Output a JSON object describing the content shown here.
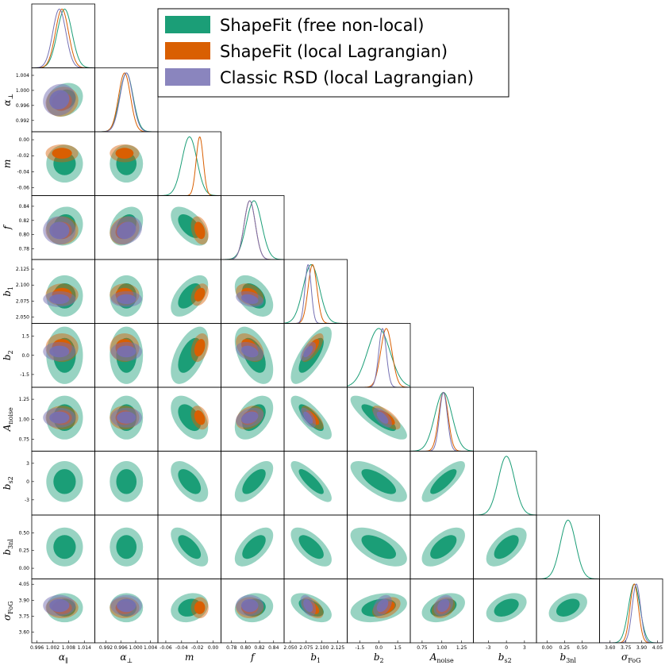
{
  "chart_data": {
    "type": "corner",
    "title": "",
    "legend_position": "top-right",
    "colors": {
      "free": "#1b9e77",
      "local": "#d95f02",
      "classic": "#7570b3"
    },
    "series": [
      {
        "key": "free",
        "name": "ShapeFit (free non-local)"
      },
      {
        "key": "local",
        "name": "ShapeFit (local Lagrangian)"
      },
      {
        "key": "classic",
        "name": "Classic RSD (local Lagrangian)"
      }
    ],
    "parameters": [
      {
        "id": "alpha_par",
        "label": "α∥",
        "range": [
          0.994,
          1.018
        ],
        "ticks": [
          0.996,
          1.002,
          1.008,
          1.014
        ],
        "tick_labels": [
          "0.996",
          "1.002",
          "1.008",
          "1.014"
        ]
      },
      {
        "id": "alpha_perp",
        "label": "α⊥",
        "range": [
          0.989,
          1.006
        ],
        "ticks": [
          0.992,
          0.996,
          1.0,
          1.004
        ],
        "tick_labels": [
          "0.992",
          "0.996",
          "1.000",
          "1.004"
        ]
      },
      {
        "id": "m",
        "label": "m",
        "range": [
          -0.07,
          0.01
        ],
        "ticks": [
          -0.06,
          -0.04,
          -0.02,
          0.0
        ],
        "tick_labels": [
          "-0.06",
          "-0.04",
          "-0.02",
          "0.00"
        ]
      },
      {
        "id": "f",
        "label": "f",
        "range": [
          0.765,
          0.855
        ],
        "ticks": [
          0.78,
          0.8,
          0.82,
          0.84
        ],
        "tick_labels": [
          "0.78",
          "0.80",
          "0.82",
          "0.84"
        ]
      },
      {
        "id": "b1",
        "label": "b1",
        "range": [
          2.04,
          2.14
        ],
        "ticks": [
          2.05,
          2.075,
          2.1,
          2.125
        ],
        "tick_labels": [
          "2.050",
          "2.075",
          "2.100",
          "2.125"
        ]
      },
      {
        "id": "b2",
        "label": "b2",
        "range": [
          -2.5,
          2.5
        ],
        "ticks": [
          -1.5,
          0.0,
          1.5
        ],
        "tick_labels": [
          "-1.5",
          "0.0",
          "1.5"
        ]
      },
      {
        "id": "Anoise",
        "label": "Anoise",
        "range": [
          0.6,
          1.4
        ],
        "ticks": [
          0.75,
          1.0,
          1.25
        ],
        "tick_labels": [
          "0.75",
          "1.00",
          "1.25"
        ]
      },
      {
        "id": "bs2",
        "label": "bs2",
        "range": [
          -5.5,
          5.0
        ],
        "ticks": [
          -3,
          0,
          3
        ],
        "tick_labels": [
          "-3",
          "0",
          "3"
        ]
      },
      {
        "id": "b3nl",
        "label": "b3nl",
        "range": [
          -0.15,
          0.75
        ],
        "ticks": [
          0.0,
          0.25,
          0.5
        ],
        "tick_labels": [
          "0.00",
          "0.25",
          "0.50"
        ]
      },
      {
        "id": "sigmaFoG",
        "label": "σFoG",
        "range": [
          3.5,
          4.1
        ],
        "ticks": [
          3.6,
          3.75,
          3.9,
          4.05
        ],
        "tick_labels": [
          "3.60",
          "3.75",
          "3.90",
          "4.05"
        ]
      }
    ],
    "posteriors": {
      "free": {
        "mean": [
          1.0065,
          0.9975,
          -0.03,
          0.812,
          2.083,
          0.0,
          1.02,
          0.0,
          0.3,
          3.83
        ],
        "sigma": [
          0.0028,
          0.0018,
          0.0095,
          0.011,
          0.013,
          0.9,
          0.11,
          1.35,
          0.11,
          0.055
        ],
        "corr": [
          [
            1,
            0.2,
            0.0,
            0.1,
            0.0,
            0.0,
            0.0,
            0.0,
            0.0,
            0.0
          ],
          [
            0.2,
            1,
            0.0,
            0.3,
            0.0,
            0.0,
            0.0,
            0.0,
            0.0,
            0.0
          ],
          [
            0.0,
            0.0,
            1,
            -0.55,
            0.55,
            0.55,
            -0.45,
            -0.55,
            -0.65,
            0.2
          ],
          [
            0.1,
            0.3,
            -0.55,
            1,
            -0.45,
            -0.5,
            0.45,
            0.65,
            0.6,
            0.1
          ],
          [
            0.0,
            0.0,
            0.55,
            -0.45,
            1,
            0.75,
            -0.78,
            -0.82,
            -0.65,
            -0.5
          ],
          [
            0.0,
            0.0,
            0.55,
            -0.5,
            0.75,
            1,
            -0.82,
            -0.72,
            -0.6,
            0.3
          ],
          [
            0.0,
            0.0,
            -0.45,
            0.45,
            -0.78,
            -0.82,
            1,
            0.8,
            0.6,
            0.35
          ],
          [
            0.0,
            0.0,
            -0.55,
            0.65,
            -0.82,
            -0.72,
            0.8,
            1,
            0.6,
            0.4
          ],
          [
            0.0,
            0.0,
            -0.65,
            0.6,
            -0.65,
            -0.6,
            0.6,
            0.6,
            1,
            0.4
          ],
          [
            0.0,
            0.0,
            0.2,
            0.1,
            -0.5,
            0.3,
            0.35,
            0.4,
            0.4,
            1
          ]
        ]
      },
      "local": {
        "mean": [
          1.0055,
          0.997,
          -0.017,
          0.806,
          2.085,
          0.6,
          1.02,
          null,
          null,
          3.83
        ],
        "sigma": [
          0.0025,
          0.0016,
          0.0045,
          0.008,
          0.007,
          0.45,
          0.06,
          null,
          null,
          0.04
        ],
        "corr": [
          [
            1,
            0.1,
            0.0,
            0.0,
            0.0,
            0.0,
            0.0,
            null,
            null,
            0.0
          ],
          [
            0.1,
            1,
            0.0,
            0.2,
            0.0,
            0.0,
            0.0,
            null,
            null,
            0.0
          ],
          [
            0.0,
            0.0,
            1,
            -0.3,
            0.3,
            0.3,
            -0.3,
            null,
            null,
            0.0
          ],
          [
            0.0,
            0.2,
            -0.3,
            1,
            -0.3,
            -0.4,
            0.3,
            null,
            null,
            0.0
          ],
          [
            0.0,
            0.0,
            0.3,
            -0.3,
            1,
            0.7,
            -0.7,
            null,
            null,
            -0.5
          ],
          [
            0.0,
            0.0,
            0.3,
            -0.4,
            0.7,
            1,
            -0.7,
            null,
            null,
            0.4
          ],
          [
            0.0,
            0.0,
            -0.3,
            0.3,
            -0.7,
            -0.7,
            1,
            null,
            null,
            0.3
          ],
          [
            null,
            null,
            null,
            null,
            null,
            null,
            null,
            null,
            null,
            null
          ],
          [
            null,
            null,
            null,
            null,
            null,
            null,
            null,
            null,
            null,
            null
          ],
          [
            0.0,
            0.0,
            0.0,
            0.0,
            -0.5,
            0.4,
            0.3,
            null,
            null,
            1
          ]
        ]
      },
      "classic": {
        "mean": [
          1.0045,
          0.9975,
          null,
          0.806,
          2.078,
          0.3,
          1.02,
          null,
          null,
          3.85
        ],
        "sigma": [
          0.0025,
          0.0017,
          null,
          0.008,
          0.005,
          0.3,
          0.05,
          null,
          null,
          0.04
        ],
        "corr": [
          [
            1,
            0.1,
            null,
            0.0,
            0.0,
            0.0,
            0.0,
            null,
            null,
            0.0
          ],
          [
            0.1,
            1,
            null,
            0.2,
            0.0,
            0.0,
            0.0,
            null,
            null,
            0.0
          ],
          [
            null,
            null,
            null,
            null,
            null,
            null,
            null,
            null,
            null,
            null
          ],
          [
            0.0,
            0.2,
            null,
            1,
            -0.3,
            -0.3,
            0.3,
            null,
            null,
            0.0
          ],
          [
            0.0,
            0.0,
            null,
            -0.3,
            1,
            0.6,
            -0.6,
            null,
            null,
            -0.4
          ],
          [
            0.0,
            0.0,
            null,
            -0.3,
            0.6,
            1,
            -0.6,
            null,
            null,
            0.4
          ],
          [
            0.0,
            0.0,
            null,
            0.3,
            -0.6,
            -0.6,
            1,
            null,
            null,
            0.3
          ],
          [
            null,
            null,
            null,
            null,
            null,
            null,
            null,
            null,
            null,
            null
          ],
          [
            null,
            null,
            null,
            null,
            null,
            null,
            null,
            null,
            null,
            null
          ],
          [
            0.0,
            0.0,
            null,
            0.0,
            -0.4,
            0.4,
            0.3,
            null,
            null,
            1
          ]
        ]
      }
    }
  }
}
